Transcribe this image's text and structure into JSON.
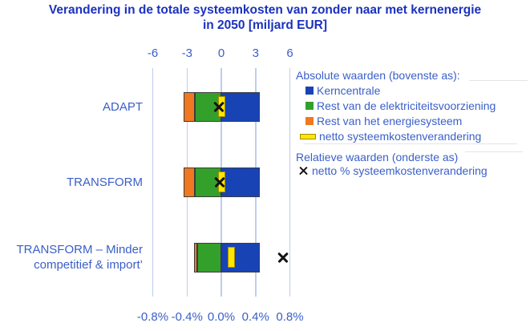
{
  "title": {
    "full": "Verandering in de totale systeemkosten van zonder naar met kernenergie in 2050 [miljard EUR]",
    "lines": [
      "Verandering in de totale systeemkosten van zonder naar met kernenergie",
      "in 2050 [miljard EUR]"
    ]
  },
  "colors": {
    "kerncentrale": "#1843B5",
    "rest_elektriciteit": "#33A02C",
    "rest_energiesysteem": "#F07820",
    "netto_geel": "#FFE600",
    "netto_geel_rand": "#A18F00",
    "marker_zwart": "#141414",
    "titel_blauw": "#1B32BE",
    "tekst_blauw": "#3A5FC8",
    "gridlijn": "#BFCCF2"
  },
  "chart_data": {
    "type": "bar",
    "orientation": "horizontal-stacked",
    "title": "Verandering in de totale systeemkosten van zonder naar met kernenergie in 2050 [miljard EUR]",
    "grid": true,
    "legend_position": "right",
    "categories": [
      "ADAPT",
      "TRANSFORM",
      "TRANSFORM – Minder competitief & import’"
    ],
    "series": [
      {
        "name": "Kerncentrale",
        "key": "kerncentrale",
        "axis": "top",
        "unit": "miljard EUR",
        "values": [
          3.4,
          3.4,
          3.4
        ]
      },
      {
        "name": "Rest van de elektriciteitsvoorziening",
        "key": "rest_elektriciteit",
        "axis": "top",
        "unit": "miljard EUR",
        "values": [
          -2.3,
          -2.3,
          -2.1
        ]
      },
      {
        "name": "Rest van het energiesysteem",
        "key": "rest_energiesysteem",
        "axis": "top",
        "unit": "miljard EUR",
        "values": [
          -1.0,
          -1.0,
          -0.3
        ]
      },
      {
        "name": "netto systeemkostenverandering",
        "key": "netto_geel",
        "axis": "top",
        "unit": "miljard EUR",
        "values": [
          0.0,
          0.0,
          0.9
        ]
      },
      {
        "name": "netto % systeemkostenverandering",
        "key": "marker_zwart",
        "axis": "bottom",
        "unit": "%",
        "values": [
          -0.03,
          -0.02,
          0.72
        ]
      }
    ],
    "top_axis": {
      "values": [
        -6,
        -3,
        0,
        3,
        6
      ],
      "labels": [
        "-6",
        "-3",
        "0",
        "3",
        "6"
      ],
      "range": [
        -6.4,
        6.5
      ],
      "unit": "miljard EUR"
    },
    "bottom_axis": {
      "values": [
        -0.8,
        -0.4,
        0.0,
        0.4,
        0.8
      ],
      "labels": [
        "-0.8%",
        "-0.4%",
        "0.0%",
        "0.4%",
        "0.8%"
      ],
      "range": [
        -0.86,
        0.87
      ],
      "unit": "%"
    }
  },
  "legend": {
    "sections": [
      {
        "title": "Absolute waarden (bovenste as):",
        "items": [
          {
            "label": "Kerncentrale",
            "swatch": "square",
            "color_key": "kerncentrale"
          },
          {
            "label": "Rest van de elektriciteitsvoorziening",
            "swatch": "square",
            "color_key": "rest_elektriciteit"
          },
          {
            "label": "Rest van het energiesysteem",
            "swatch": "square",
            "color_key": "rest_energiesysteem"
          },
          {
            "label": "netto systeemkostenverandering",
            "swatch": "bar",
            "color_key": "netto_geel"
          }
        ]
      },
      {
        "title": "Relatieve waarden (onderste as)",
        "items": [
          {
            "label": "netto % systeemkostenverandering",
            "swatch": "x",
            "color_key": "marker_zwart"
          }
        ]
      }
    ]
  }
}
